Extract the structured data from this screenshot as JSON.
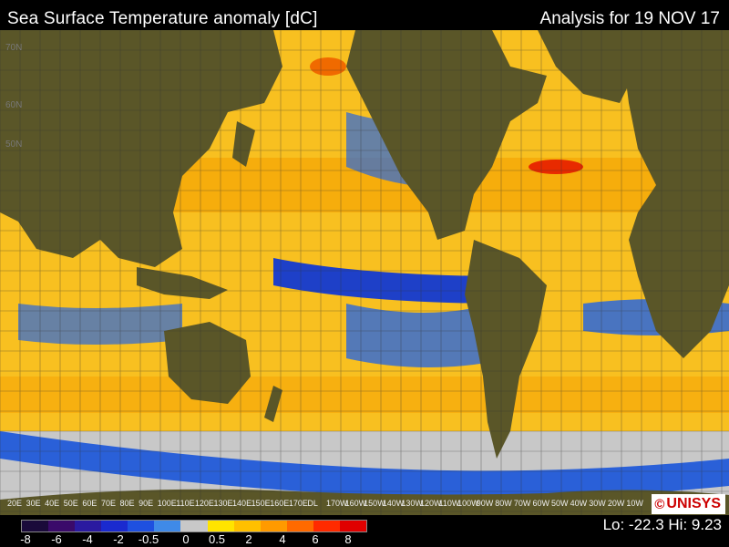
{
  "header": {
    "title": "Sea Surface Temperature anomaly [dC]",
    "analysis": "Analysis for 19 NOV 17"
  },
  "map": {
    "lat_labels": [
      "70N",
      "60N",
      "50N"
    ],
    "lon_labels": [
      "20E",
      "30E",
      "40E",
      "50E",
      "60E",
      "70E",
      "80E",
      "90E",
      "100E",
      "110E",
      "120E",
      "130E",
      "140E",
      "150E",
      "160E",
      "170E",
      "DL",
      "170W",
      "160W",
      "150W",
      "140W",
      "130W",
      "120W",
      "110W",
      "100W",
      "90W",
      "80W",
      "70W",
      "60W",
      "50W",
      "40W",
      "30W",
      "20W",
      "10W"
    ],
    "colors": {
      "land": "#5a5628",
      "ocean_warm": "#f5a800",
      "ocean_mild": "#ffd000",
      "ocean_cool": "#2a55d8",
      "ice": "#c8c8c8"
    }
  },
  "legend": {
    "tick_labels": [
      "-8",
      "-6",
      "-4",
      "-2",
      "-0.5",
      "0",
      "0.5",
      "2",
      "4",
      "6",
      "8"
    ],
    "colors": [
      "#1a0a3a",
      "#3a0a6a",
      "#2a1aa0",
      "#1a2acf",
      "#1e50e0",
      "#3f8ae8",
      "#c8c8c8",
      "#ffe400",
      "#ffc000",
      "#ff9a00",
      "#ff6a00",
      "#ff2a00",
      "#e00000"
    ]
  },
  "stats": "Lo: -22.3  Hi: 9.23",
  "logo": {
    "symbol": "©",
    "text": "UNISYS"
  }
}
